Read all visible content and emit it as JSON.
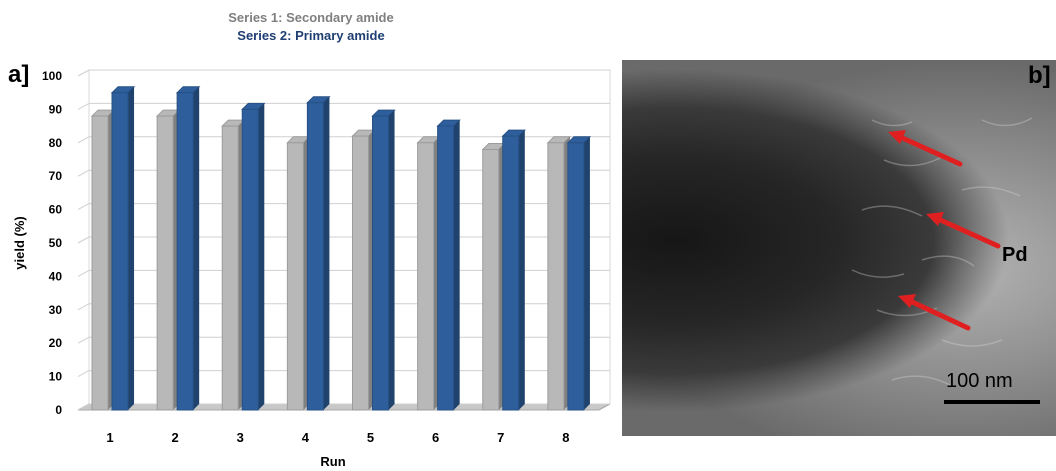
{
  "chart_data": {
    "type": "bar",
    "panel_label": "a]",
    "legend": [
      {
        "text": "Series 1: Secondary amide",
        "color": "#7f7f7f"
      },
      {
        "text": "Series 2: Primary amide",
        "color": "#1f3f73"
      }
    ],
    "categories": [
      "1",
      "2",
      "3",
      "4",
      "5",
      "6",
      "7",
      "8"
    ],
    "series": [
      {
        "name": "Series 1: Secondary amide",
        "color": "#b8b8b8",
        "values": [
          88,
          88,
          85,
          80,
          82,
          80,
          78,
          80
        ]
      },
      {
        "name": "Series 2: Primary amide",
        "color": "#2e5f9c",
        "values": [
          95,
          95,
          90,
          92,
          88,
          85,
          82,
          80
        ]
      }
    ],
    "xlabel": "Run",
    "ylabel": "yield (%)",
    "ylim": [
      0,
      100
    ],
    "yticks": [
      0,
      10,
      20,
      30,
      40,
      50,
      60,
      70,
      80,
      90,
      100
    ],
    "grid": true
  },
  "tem": {
    "panel_label": "b]",
    "pd_label": "Pd",
    "scale_label": "100 nm"
  }
}
